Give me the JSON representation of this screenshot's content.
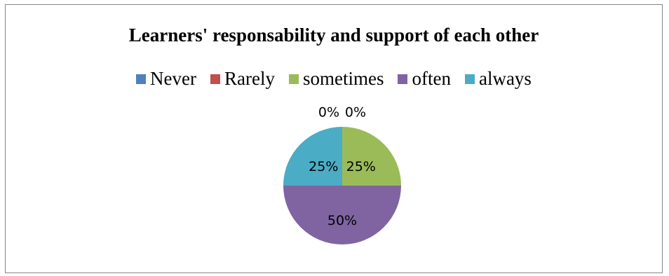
{
  "chart_data": {
    "type": "pie",
    "title": "Learners' responsability and support of each other",
    "legend_position": "top",
    "categories": [
      "Never",
      "Rarely",
      "sometimes",
      "often",
      "always"
    ],
    "values": [
      0,
      0,
      25,
      50,
      25
    ],
    "data_labels": [
      "0%",
      "0%",
      "25%",
      "50%",
      "25%"
    ],
    "colors": [
      "#4F81BD",
      "#C0504D",
      "#9BBB59",
      "#8064A2",
      "#4BACC6"
    ]
  }
}
